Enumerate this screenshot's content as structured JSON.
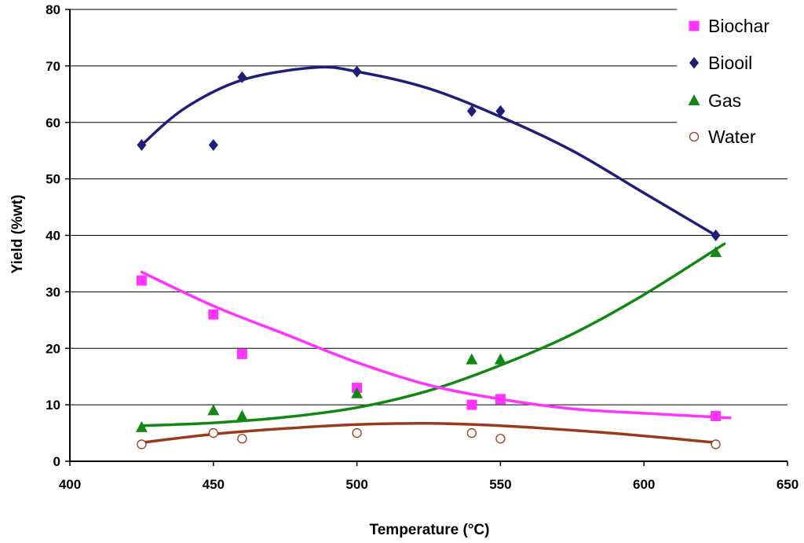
{
  "chart_data": {
    "type": "scatter",
    "title": "",
    "xlabel": "Temperature (°C)",
    "ylabel": "Yield (%wt)",
    "xlim": [
      400,
      650
    ],
    "ylim": [
      0,
      80
    ],
    "xticks": [
      400,
      450,
      500,
      550,
      600,
      650
    ],
    "yticks": [
      0,
      10,
      20,
      30,
      40,
      50,
      60,
      70,
      80
    ],
    "x_tick_labels": [
      "400",
      "450",
      "500",
      "550",
      "600",
      "650"
    ],
    "y_tick_labels": [
      "0",
      "10",
      "20",
      "30",
      "40",
      "50",
      "60",
      "70",
      "80"
    ],
    "grid": "horizontal",
    "legend_position": "top-right",
    "series": [
      {
        "name": "Biochar",
        "marker": "square",
        "color": "#ff33ff",
        "points": [
          [
            425,
            32
          ],
          [
            450,
            26
          ],
          [
            460,
            19
          ],
          [
            500,
            13
          ],
          [
            540,
            10
          ],
          [
            550,
            11
          ],
          [
            625,
            8
          ]
        ],
        "trend": [
          [
            425,
            33.5
          ],
          [
            450,
            27.5
          ],
          [
            475,
            22.5
          ],
          [
            500,
            17.5
          ],
          [
            525,
            13.5
          ],
          [
            550,
            11
          ],
          [
            575,
            9.3
          ],
          [
            600,
            8.5
          ],
          [
            630,
            7.7
          ]
        ]
      },
      {
        "name": "Biooil",
        "marker": "diamond",
        "color": "#1f1f7a",
        "points": [
          [
            425,
            56
          ],
          [
            450,
            56
          ],
          [
            460,
            68
          ],
          [
            500,
            69
          ],
          [
            540,
            62
          ],
          [
            550,
            62
          ],
          [
            625,
            40
          ]
        ],
        "trend": [
          [
            425,
            56
          ],
          [
            440,
            62.5
          ],
          [
            460,
            67.5
          ],
          [
            485,
            69.7
          ],
          [
            500,
            69
          ],
          [
            525,
            66
          ],
          [
            550,
            61
          ],
          [
            575,
            55
          ],
          [
            600,
            47.5
          ],
          [
            625,
            40
          ]
        ]
      },
      {
        "name": "Gas",
        "marker": "triangle",
        "color": "#118811",
        "points": [
          [
            425,
            6
          ],
          [
            450,
            9
          ],
          [
            460,
            8
          ],
          [
            500,
            12
          ],
          [
            540,
            18
          ],
          [
            550,
            18
          ],
          [
            625,
            37
          ]
        ],
        "trend": [
          [
            425,
            6.3
          ],
          [
            450,
            6.8
          ],
          [
            475,
            7.8
          ],
          [
            500,
            9.5
          ],
          [
            525,
            12.5
          ],
          [
            550,
            17
          ],
          [
            575,
            22.5
          ],
          [
            600,
            29.5
          ],
          [
            628,
            38.5
          ]
        ]
      },
      {
        "name": "Water",
        "marker": "circle-open",
        "color": "#9b3a1a",
        "points": [
          [
            425,
            3
          ],
          [
            450,
            5
          ],
          [
            460,
            4
          ],
          [
            500,
            5
          ],
          [
            540,
            5
          ],
          [
            550,
            4
          ],
          [
            625,
            3
          ]
        ],
        "trend": [
          [
            425,
            3.3
          ],
          [
            450,
            4.8
          ],
          [
            475,
            5.8
          ],
          [
            500,
            6.5
          ],
          [
            525,
            6.7
          ],
          [
            550,
            6.3
          ],
          [
            575,
            5.5
          ],
          [
            600,
            4.5
          ],
          [
            625,
            3.3
          ]
        ]
      }
    ]
  }
}
